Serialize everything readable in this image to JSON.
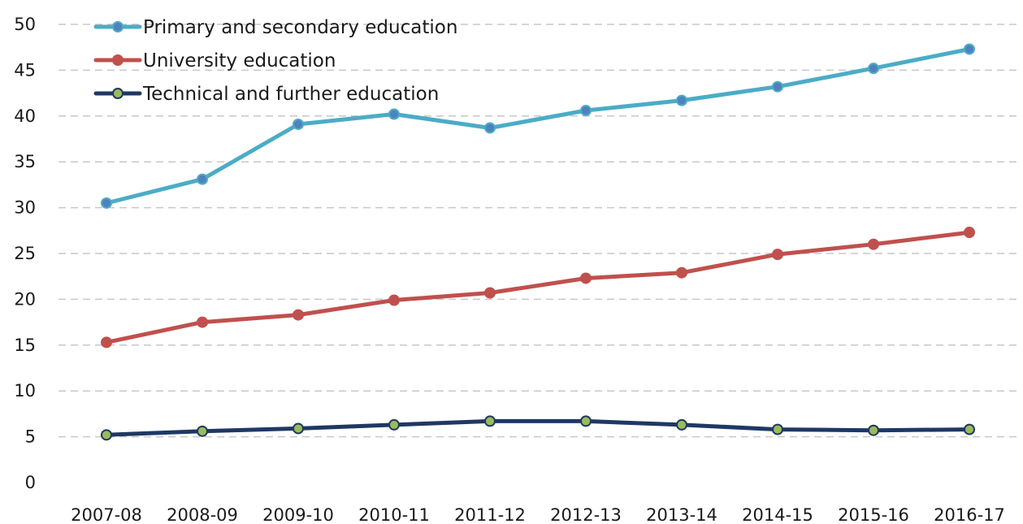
{
  "chart_data": {
    "type": "line",
    "title": "",
    "xlabel": "",
    "ylabel": "",
    "categories": [
      "2007-08",
      "2008-09",
      "2009-10",
      "2010-11",
      "2011-12",
      "2012-13",
      "2013-14",
      "2014-15",
      "2015-16",
      "2016-17"
    ],
    "ylim": [
      0,
      50
    ],
    "yticks": [
      0,
      5,
      10,
      15,
      20,
      25,
      30,
      35,
      40,
      45,
      50
    ],
    "grid": true,
    "legend_position": "top-left",
    "series": [
      {
        "name": "Primary and secondary education",
        "color": "#4bacc6",
        "marker_color": "#4f81bd",
        "values": [
          30.5,
          33.1,
          39.1,
          40.2,
          38.7,
          40.6,
          41.7,
          43.2,
          45.2,
          47.3
        ]
      },
      {
        "name": "University education",
        "color": "#c0504d",
        "marker_color": "#c0504d",
        "values": [
          15.3,
          17.5,
          18.3,
          19.9,
          20.7,
          22.3,
          22.9,
          24.9,
          26.0,
          27.3
        ]
      },
      {
        "name": "Technical and further education",
        "color": "#1f3864",
        "marker_color": "#9bbb59",
        "values": [
          5.2,
          5.6,
          5.9,
          6.3,
          6.7,
          6.7,
          6.3,
          5.8,
          5.7,
          5.8
        ]
      }
    ]
  }
}
